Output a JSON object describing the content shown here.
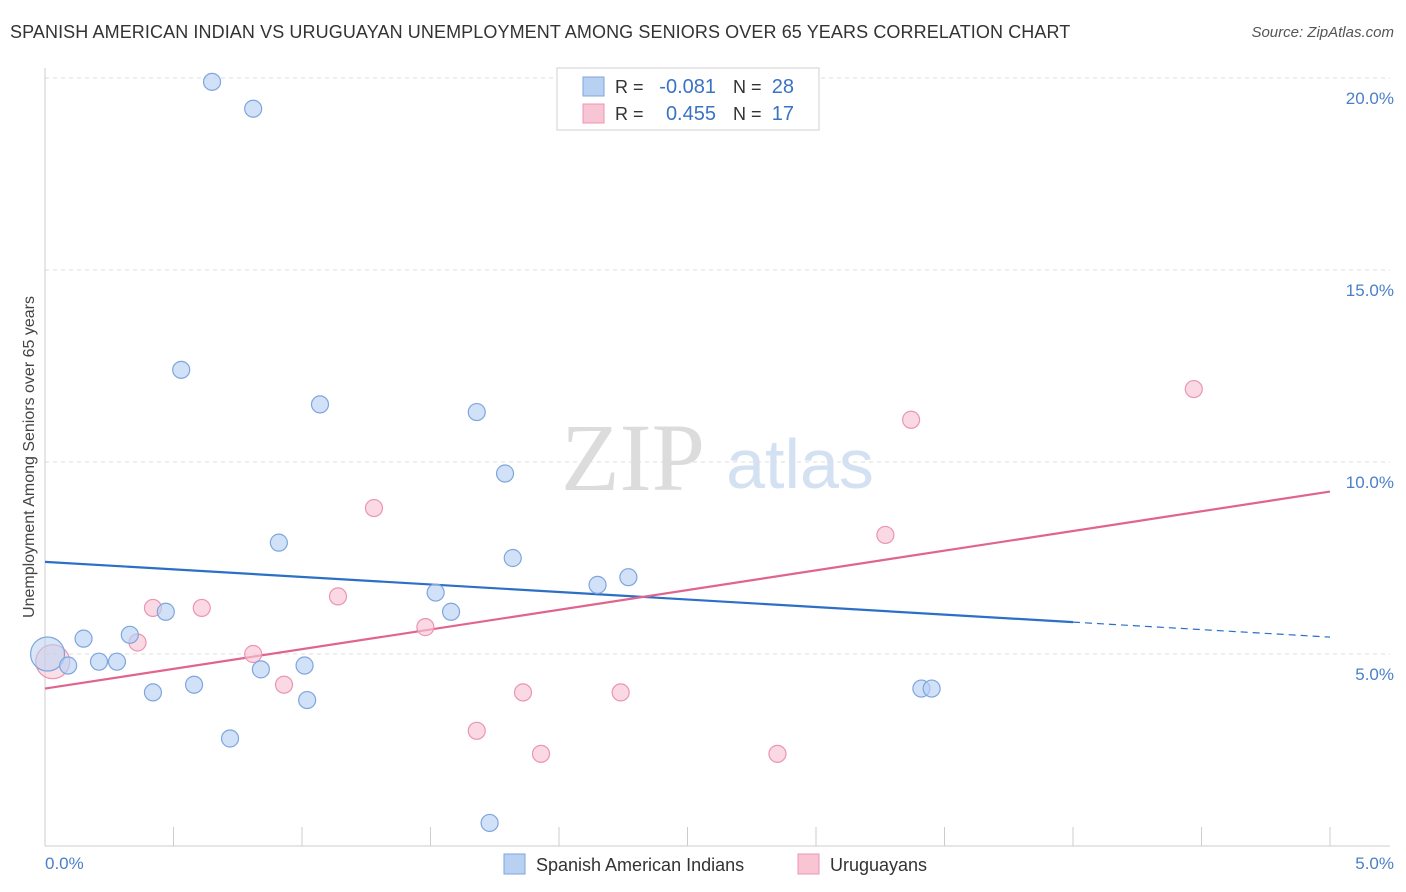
{
  "header": {
    "title": "SPANISH AMERICAN INDIAN VS URUGUAYAN UNEMPLOYMENT AMONG SENIORS OVER 65 YEARS CORRELATION CHART",
    "source": "Source: ZipAtlas.com"
  },
  "watermark": {
    "part1": "ZIP",
    "part2": "atlas"
  },
  "colors": {
    "blue_fill": "#b8d1f3",
    "blue_stroke": "#7ea6de",
    "blue_line": "#2b6fc7",
    "pink_fill": "#f8c5d5",
    "pink_stroke": "#ec94b1",
    "pink_line": "#e0648e",
    "axis_text": "#4a80c8",
    "grid": "#dddddd"
  },
  "legend_top": {
    "rows": [
      {
        "r_label": "R =",
        "r_value": "-0.081",
        "n_label": "N =",
        "n_value": "28"
      },
      {
        "r_label": "R =",
        "r_value": "0.455",
        "n_label": "N =",
        "n_value": "17"
      }
    ]
  },
  "chart_data": {
    "type": "scatter",
    "title": "SPANISH AMERICAN INDIAN VS URUGUAYAN UNEMPLOYMENT AMONG SENIORS OVER 65 YEARS CORRELATION CHART",
    "xlabel": "",
    "ylabel": "Unemployment Among Seniors over 65 years",
    "xlim": [
      0,
      5
    ],
    "ylim": [
      0,
      20
    ],
    "x_tick_labels": [
      "0.0%",
      "5.0%"
    ],
    "y_ticks": [
      5,
      10,
      15,
      20
    ],
    "y_tick_labels": [
      "5.0%",
      "10.0%",
      "15.0%",
      "20.0%"
    ],
    "x_minor_ticks": [
      0.5,
      1.0,
      1.5,
      2.0,
      2.5,
      3.0,
      3.5,
      4.0,
      4.5,
      5.0
    ],
    "series": [
      {
        "name": "Spanish American Indians",
        "r": -0.081,
        "n": 28,
        "points": [
          {
            "x": 0.01,
            "y": 5.0,
            "big": true
          },
          {
            "x": 0.09,
            "y": 4.7
          },
          {
            "x": 0.15,
            "y": 5.4
          },
          {
            "x": 0.21,
            "y": 4.8
          },
          {
            "x": 0.28,
            "y": 4.8
          },
          {
            "x": 0.33,
            "y": 5.5
          },
          {
            "x": 0.42,
            "y": 4.0
          },
          {
            "x": 0.47,
            "y": 6.1
          },
          {
            "x": 0.53,
            "y": 12.4
          },
          {
            "x": 0.58,
            "y": 4.2
          },
          {
            "x": 0.65,
            "y": 19.9
          },
          {
            "x": 0.72,
            "y": 2.8
          },
          {
            "x": 0.81,
            "y": 19.2
          },
          {
            "x": 0.84,
            "y": 4.6
          },
          {
            "x": 0.91,
            "y": 7.9
          },
          {
            "x": 1.01,
            "y": 4.7
          },
          {
            "x": 1.02,
            "y": 3.8
          },
          {
            "x": 1.07,
            "y": 11.5
          },
          {
            "x": 1.52,
            "y": 6.6
          },
          {
            "x": 1.58,
            "y": 6.1
          },
          {
            "x": 1.68,
            "y": 11.3
          },
          {
            "x": 1.73,
            "y": 0.6
          },
          {
            "x": 1.79,
            "y": 9.7
          },
          {
            "x": 1.82,
            "y": 7.5
          },
          {
            "x": 2.15,
            "y": 6.8
          },
          {
            "x": 2.27,
            "y": 7.0
          },
          {
            "x": 3.41,
            "y": 4.1
          },
          {
            "x": 3.45,
            "y": 4.1
          }
        ],
        "trend": {
          "x0": 0.0,
          "y0": 7.4,
          "x1": 4.0,
          "y1": 5.83,
          "dash_x1": 5.0,
          "dash_y1": 5.44
        }
      },
      {
        "name": "Uruguayans",
        "r": 0.455,
        "n": 17,
        "points": [
          {
            "x": 0.03,
            "y": 4.8,
            "big": true
          },
          {
            "x": 0.36,
            "y": 5.3
          },
          {
            "x": 0.42,
            "y": 6.2
          },
          {
            "x": 0.61,
            "y": 6.2
          },
          {
            "x": 0.81,
            "y": 5.0
          },
          {
            "x": 0.93,
            "y": 4.2
          },
          {
            "x": 1.14,
            "y": 6.5
          },
          {
            "x": 1.28,
            "y": 8.8
          },
          {
            "x": 1.48,
            "y": 5.7
          },
          {
            "x": 1.68,
            "y": 3.0
          },
          {
            "x": 1.86,
            "y": 4.0
          },
          {
            "x": 1.93,
            "y": 2.4
          },
          {
            "x": 2.24,
            "y": 4.0
          },
          {
            "x": 2.85,
            "y": 2.4
          },
          {
            "x": 3.27,
            "y": 8.1
          },
          {
            "x": 3.37,
            "y": 11.1
          },
          {
            "x": 4.47,
            "y": 11.9
          }
        ],
        "trend": {
          "x0": 0.0,
          "y0": 4.1,
          "x1": 5.0,
          "y1": 9.23
        }
      }
    ],
    "legend": [
      "Spanish American Indians",
      "Uruguayans"
    ],
    "legend_position": "bottom-center"
  }
}
